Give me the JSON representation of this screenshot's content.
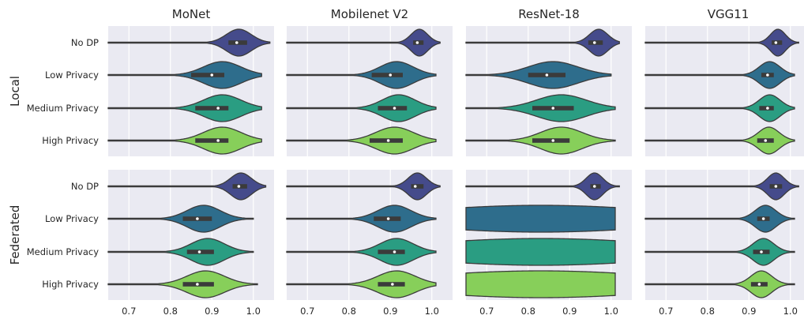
{
  "chart_data": {
    "type": "violin",
    "columns": [
      "MoNet",
      "Mobilenet V2",
      "ResNet-18",
      "VGG11"
    ],
    "rows": [
      "Local",
      "Federated"
    ],
    "categories": [
      "No DP",
      "Low Privacy",
      "Medium Privacy",
      "High Privacy"
    ],
    "xlim": [
      0.65,
      1.05
    ],
    "xticks": [
      "0.7",
      "0.8",
      "0.9",
      "1.0"
    ],
    "grid": true,
    "colors": {
      "No DP": "#454b8b",
      "Low Privacy": "#2e6d8c",
      "Medium Privacy": "#2a9d82",
      "High Privacy": "#87cf5a",
      "background": "#eaeaf2",
      "grid": "#ffffff",
      "line": "#3b3b3b"
    },
    "panels": [
      {
        "row": "Local",
        "column": "MoNet",
        "violins": [
          {
            "category": "No DP",
            "min": 0.65,
            "q1": 0.94,
            "median": 0.96,
            "q3": 0.985,
            "max": 1.04,
            "peak": 0.965,
            "spread": 0.03
          },
          {
            "category": "Low Privacy",
            "min": 0.65,
            "q1": 0.85,
            "median": 0.9,
            "q3": 0.93,
            "max": 1.02,
            "peak": 0.925,
            "spread": 0.045
          },
          {
            "category": "Medium Privacy",
            "min": 0.65,
            "q1": 0.86,
            "median": 0.915,
            "q3": 0.94,
            "max": 1.02,
            "peak": 0.925,
            "spread": 0.045
          },
          {
            "category": "High Privacy",
            "min": 0.65,
            "q1": 0.86,
            "median": 0.915,
            "q3": 0.94,
            "max": 1.02,
            "peak": 0.925,
            "spread": 0.045
          }
        ]
      },
      {
        "row": "Local",
        "column": "Mobilenet V2",
        "violins": [
          {
            "category": "No DP",
            "min": 0.65,
            "q1": 0.955,
            "median": 0.965,
            "q3": 0.98,
            "max": 1.02,
            "peak": 0.97,
            "spread": 0.02
          },
          {
            "category": "Low Privacy",
            "min": 0.65,
            "q1": 0.855,
            "median": 0.9,
            "q3": 0.93,
            "max": 1.01,
            "peak": 0.915,
            "spread": 0.04
          },
          {
            "category": "Medium Privacy",
            "min": 0.65,
            "q1": 0.87,
            "median": 0.91,
            "q3": 0.94,
            "max": 1.01,
            "peak": 0.92,
            "spread": 0.04
          },
          {
            "category": "High Privacy",
            "min": 0.65,
            "q1": 0.85,
            "median": 0.895,
            "q3": 0.93,
            "max": 1.01,
            "peak": 0.91,
            "spread": 0.045
          }
        ]
      },
      {
        "row": "Local",
        "column": "ResNet-18",
        "violins": [
          {
            "category": "No DP",
            "min": 0.65,
            "q1": 0.945,
            "median": 0.96,
            "q3": 0.98,
            "max": 1.02,
            "peak": 0.97,
            "spread": 0.022
          },
          {
            "category": "Low Privacy",
            "min": 0.65,
            "q1": 0.8,
            "median": 0.845,
            "q3": 0.89,
            "max": 1.0,
            "peak": 0.86,
            "spread": 0.06
          },
          {
            "category": "Medium Privacy",
            "min": 0.65,
            "q1": 0.81,
            "median": 0.86,
            "q3": 0.91,
            "max": 1.01,
            "peak": 0.88,
            "spread": 0.06
          },
          {
            "category": "High Privacy",
            "min": 0.65,
            "q1": 0.81,
            "median": 0.86,
            "q3": 0.9,
            "max": 1.01,
            "peak": 0.88,
            "spread": 0.05
          }
        ]
      },
      {
        "row": "Local",
        "column": "VGG11",
        "violins": [
          {
            "category": "No DP",
            "min": 0.65,
            "q1": 0.955,
            "median": 0.965,
            "q3": 0.98,
            "max": 1.02,
            "peak": 0.97,
            "spread": 0.018
          },
          {
            "category": "Low Privacy",
            "min": 0.65,
            "q1": 0.93,
            "median": 0.945,
            "q3": 0.96,
            "max": 1.01,
            "peak": 0.95,
            "spread": 0.025
          },
          {
            "category": "Medium Privacy",
            "min": 0.65,
            "q1": 0.925,
            "median": 0.945,
            "q3": 0.96,
            "max": 1.01,
            "peak": 0.95,
            "spread": 0.025
          },
          {
            "category": "High Privacy",
            "min": 0.65,
            "q1": 0.92,
            "median": 0.94,
            "q3": 0.96,
            "max": 1.01,
            "peak": 0.948,
            "spread": 0.025
          }
        ]
      },
      {
        "row": "Federated",
        "column": "MoNet",
        "violins": [
          {
            "category": "No DP",
            "min": 0.65,
            "q1": 0.95,
            "median": 0.965,
            "q3": 0.985,
            "max": 1.03,
            "peak": 0.97,
            "spread": 0.025
          },
          {
            "category": "Low Privacy",
            "min": 0.65,
            "q1": 0.83,
            "median": 0.865,
            "q3": 0.9,
            "max": 1.0,
            "peak": 0.88,
            "spread": 0.04
          },
          {
            "category": "Medium Privacy",
            "min": 0.65,
            "q1": 0.84,
            "median": 0.87,
            "q3": 0.905,
            "max": 1.0,
            "peak": 0.89,
            "spread": 0.04
          },
          {
            "category": "High Privacy",
            "min": 0.65,
            "q1": 0.83,
            "median": 0.865,
            "q3": 0.905,
            "max": 1.01,
            "peak": 0.885,
            "spread": 0.045
          }
        ]
      },
      {
        "row": "Federated",
        "column": "Mobilenet V2",
        "violins": [
          {
            "category": "No DP",
            "min": 0.65,
            "q1": 0.95,
            "median": 0.96,
            "q3": 0.98,
            "max": 1.02,
            "peak": 0.965,
            "spread": 0.022
          },
          {
            "category": "Low Privacy",
            "min": 0.65,
            "q1": 0.86,
            "median": 0.895,
            "q3": 0.925,
            "max": 1.01,
            "peak": 0.91,
            "spread": 0.04
          },
          {
            "category": "Medium Privacy",
            "min": 0.65,
            "q1": 0.87,
            "median": 0.91,
            "q3": 0.935,
            "max": 1.01,
            "peak": 0.915,
            "spread": 0.04
          },
          {
            "category": "High Privacy",
            "min": 0.65,
            "q1": 0.87,
            "median": 0.905,
            "q3": 0.935,
            "max": 1.01,
            "peak": 0.915,
            "spread": 0.045
          }
        ]
      },
      {
        "row": "Federated",
        "column": "ResNet-18",
        "violins": [
          {
            "category": "No DP",
            "min": 0.65,
            "q1": 0.95,
            "median": 0.96,
            "q3": 0.975,
            "max": 1.02,
            "peak": 0.96,
            "spread": 0.02
          },
          {
            "category": "Low Privacy",
            "min": 0.65,
            "q1": 0.65,
            "median": 0.65,
            "q3": 0.65,
            "max": 1.01,
            "peak": 0.83,
            "spread": 0.3
          },
          {
            "category": "Medium Privacy",
            "min": 0.65,
            "q1": 0.65,
            "median": 0.65,
            "q3": 0.65,
            "max": 1.01,
            "peak": 0.83,
            "spread": 0.3
          },
          {
            "category": "High Privacy",
            "min": 0.65,
            "q1": 0.65,
            "median": 0.65,
            "q3": 0.65,
            "max": 1.01,
            "peak": 0.83,
            "spread": 0.3
          }
        ]
      },
      {
        "row": "Federated",
        "column": "VGG11",
        "violins": [
          {
            "category": "No DP",
            "min": 0.65,
            "q1": 0.95,
            "median": 0.965,
            "q3": 0.98,
            "max": 1.02,
            "peak": 0.965,
            "spread": 0.02
          },
          {
            "category": "Low Privacy",
            "min": 0.65,
            "q1": 0.92,
            "median": 0.935,
            "q3": 0.95,
            "max": 1.01,
            "peak": 0.94,
            "spread": 0.025
          },
          {
            "category": "Medium Privacy",
            "min": 0.65,
            "q1": 0.91,
            "median": 0.93,
            "q3": 0.95,
            "max": 1.01,
            "peak": 0.935,
            "spread": 0.025
          },
          {
            "category": "High Privacy",
            "min": 0.65,
            "q1": 0.905,
            "median": 0.925,
            "q3": 0.945,
            "max": 1.01,
            "peak": 0.93,
            "spread": 0.025
          }
        ]
      }
    ]
  }
}
